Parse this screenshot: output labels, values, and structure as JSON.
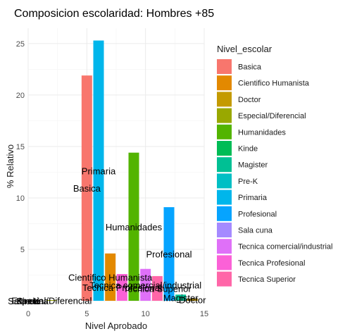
{
  "chart_data": {
    "type": "bar",
    "title": "Composicion escolaridad: Hombres +85",
    "xlabel": "Nivel Aprobado",
    "ylabel": "% Relativo",
    "xlim": [
      0,
      15
    ],
    "ylim": [
      0,
      26.5
    ],
    "x_ticks": [
      0,
      5,
      10,
      15
    ],
    "y_ticks": [
      0,
      5,
      10,
      15,
      20,
      25
    ],
    "grid": true,
    "legend_title": "Nivel_escolar",
    "legend_position": "right",
    "series": [
      {
        "name": "Basica",
        "color": "#F8766D",
        "x": 5,
        "value": 21.9,
        "label": "Basica"
      },
      {
        "name": "Cientifico Humanista",
        "color": "#E38900",
        "x": 7,
        "value": 4.6,
        "label": "Cientifico Humanista"
      },
      {
        "name": "Doctor",
        "color": "#C49A00",
        "x": 14,
        "value": 0.2,
        "label": "Doctor"
      },
      {
        "name": "Especial/Diferencial",
        "color": "#99A800",
        "x": 2,
        "value": 0.05,
        "label": "Especial/Diferencial"
      },
      {
        "name": "Humanidades",
        "color": "#53B400",
        "x": 9,
        "value": 14.4,
        "label": "Humanidades"
      },
      {
        "name": "Kinde",
        "color": "#00BC56",
        "x": 0,
        "value": 0.0,
        "label": "Kinde"
      },
      {
        "name": "Magister",
        "color": "#00C094",
        "x": 13,
        "value": 0.6,
        "label": "Magister"
      },
      {
        "name": "Pre-K",
        "color": "#00BFC4",
        "x": 0,
        "value": 0.0,
        "label": "Pre-K"
      },
      {
        "name": "Primaria",
        "color": "#00B6EB",
        "x": 6,
        "value": 25.3,
        "label": "Primaria"
      },
      {
        "name": "Profesional",
        "color": "#06A4FF",
        "x": 12,
        "value": 9.1,
        "label": "Profesional"
      },
      {
        "name": "Sala cuna",
        "color": "#A58AFF",
        "x": 0,
        "value": 0.0,
        "label": "Sala cuna"
      },
      {
        "name": "Tecnica comercial/industrial",
        "color": "#DF70F8",
        "x": 10,
        "value": 3.1,
        "label": "Tecnica comercial/industrial"
      },
      {
        "name": "Tecnica Profesional",
        "color": "#FB61D7",
        "x": 8,
        "value": 2.6,
        "label": "Tecnica Profesional"
      },
      {
        "name": "Tecnica Superior",
        "color": "#FF66A8",
        "x": 11,
        "value": 2.4,
        "label": "Tecnica Superior"
      }
    ]
  }
}
